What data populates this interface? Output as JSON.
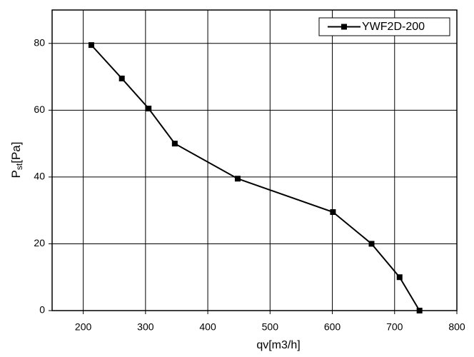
{
  "chart_data": {
    "type": "line",
    "x_label": "qv[m3/h]",
    "y_label": "P",
    "y_label_subscript": "st",
    "y_label_unit": "[Pa]",
    "x": [
      213,
      262,
      305,
      347,
      448,
      601,
      663,
      708,
      740
    ],
    "series": [
      {
        "name": "YWF2D-200",
        "color": "#000000",
        "values": [
          79.5,
          69.5,
          60.5,
          50,
          39.5,
          29.5,
          20,
          10,
          0
        ]
      }
    ],
    "xlim": [
      150,
      800
    ],
    "xticks": [
      200,
      300,
      400,
      500,
      600,
      700,
      800
    ],
    "ylim": [
      0,
      90
    ],
    "yticks": [
      0,
      20,
      40,
      60,
      80
    ],
    "grid": true,
    "legend": "top-right"
  }
}
